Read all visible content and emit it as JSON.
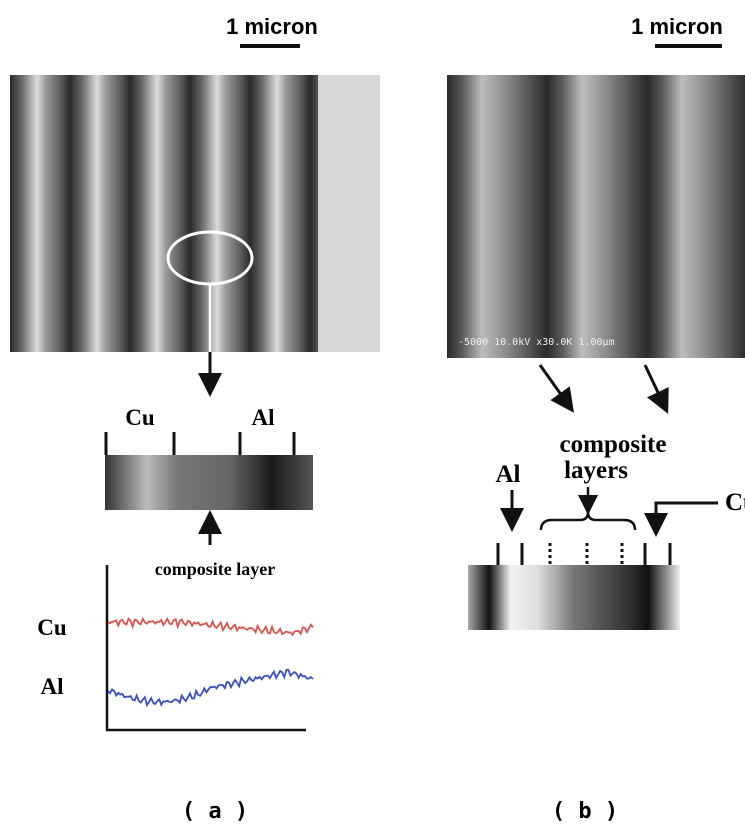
{
  "panel_a": {
    "scale_bar": "1 micron",
    "strip_labels": [
      "Cu",
      "Al"
    ],
    "annotation": "composite layer",
    "profile_labels": [
      "Cu",
      "Al"
    ],
    "caption": "( a )"
  },
  "panel_b": {
    "scale_bar": "1 micron",
    "sem_info": "-5000 10.0kV x30.0K 1.00µm",
    "left_label": "Al",
    "middle_label": [
      "composite",
      "layers"
    ],
    "right_label": "Cu",
    "caption": "( b )"
  }
}
